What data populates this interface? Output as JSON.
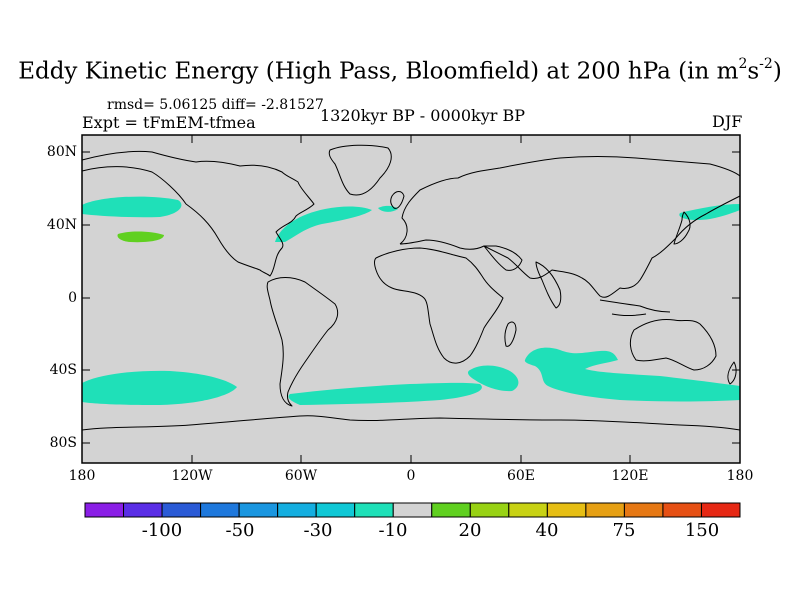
{
  "title": {
    "main": "Eddy Kinetic Energy (High Pass, Bloomfield) at 200 hPa (in m",
    "sup1": "2",
    "mid": "s",
    "sup2": "-2",
    "end": ")"
  },
  "stats_text": "rmsd= 5.06125 diff= -2.81527",
  "experiment_text": "Expt = tFmEM-tfmea",
  "period_text": "1320kyr BP - 0000kyr BP",
  "season_text": "DJF",
  "lat_ticks": [
    "80N",
    "40N",
    "0",
    "40S",
    "80S"
  ],
  "lon_ticks": [
    "180",
    "120W",
    "60W",
    "0",
    "60E",
    "120E",
    "180"
  ],
  "colors": {
    "land_ocean_background": "#d3d3d3",
    "coastline": "#000000",
    "anomaly_minus10_band": "#1fe0b8",
    "anomaly_plus20_band": "#60d020"
  },
  "colorbar": {
    "colors": [
      "#8a1ee6",
      "#5a2ee6",
      "#2a5ad6",
      "#1e78dc",
      "#1a96e0",
      "#14aee0",
      "#10c8d6",
      "#1ee0b8",
      "#d3d3d3",
      "#60d020",
      "#98d214",
      "#c8d214",
      "#e6be14",
      "#e6a014",
      "#e67814",
      "#e65014",
      "#e62814"
    ],
    "labels": [
      "-100",
      "-50",
      "-30",
      "-10",
      "20",
      "40",
      "75",
      "150"
    ]
  },
  "shaded_regions": [
    {
      "name": "north-pacific-east-band",
      "value_band": "-10"
    },
    {
      "name": "north-pacific-west-band",
      "value_band": "-10"
    },
    {
      "name": "north-pacific-positive-spot",
      "value_band": "20"
    },
    {
      "name": "north-atlantic-band",
      "value_band": "-10"
    },
    {
      "name": "south-pacific-band",
      "value_band": "-10"
    },
    {
      "name": "south-atlantic-band",
      "value_band": "-10"
    },
    {
      "name": "south-indian-west-band",
      "value_band": "-10"
    },
    {
      "name": "south-indian-east-band",
      "value_band": "-10"
    }
  ]
}
